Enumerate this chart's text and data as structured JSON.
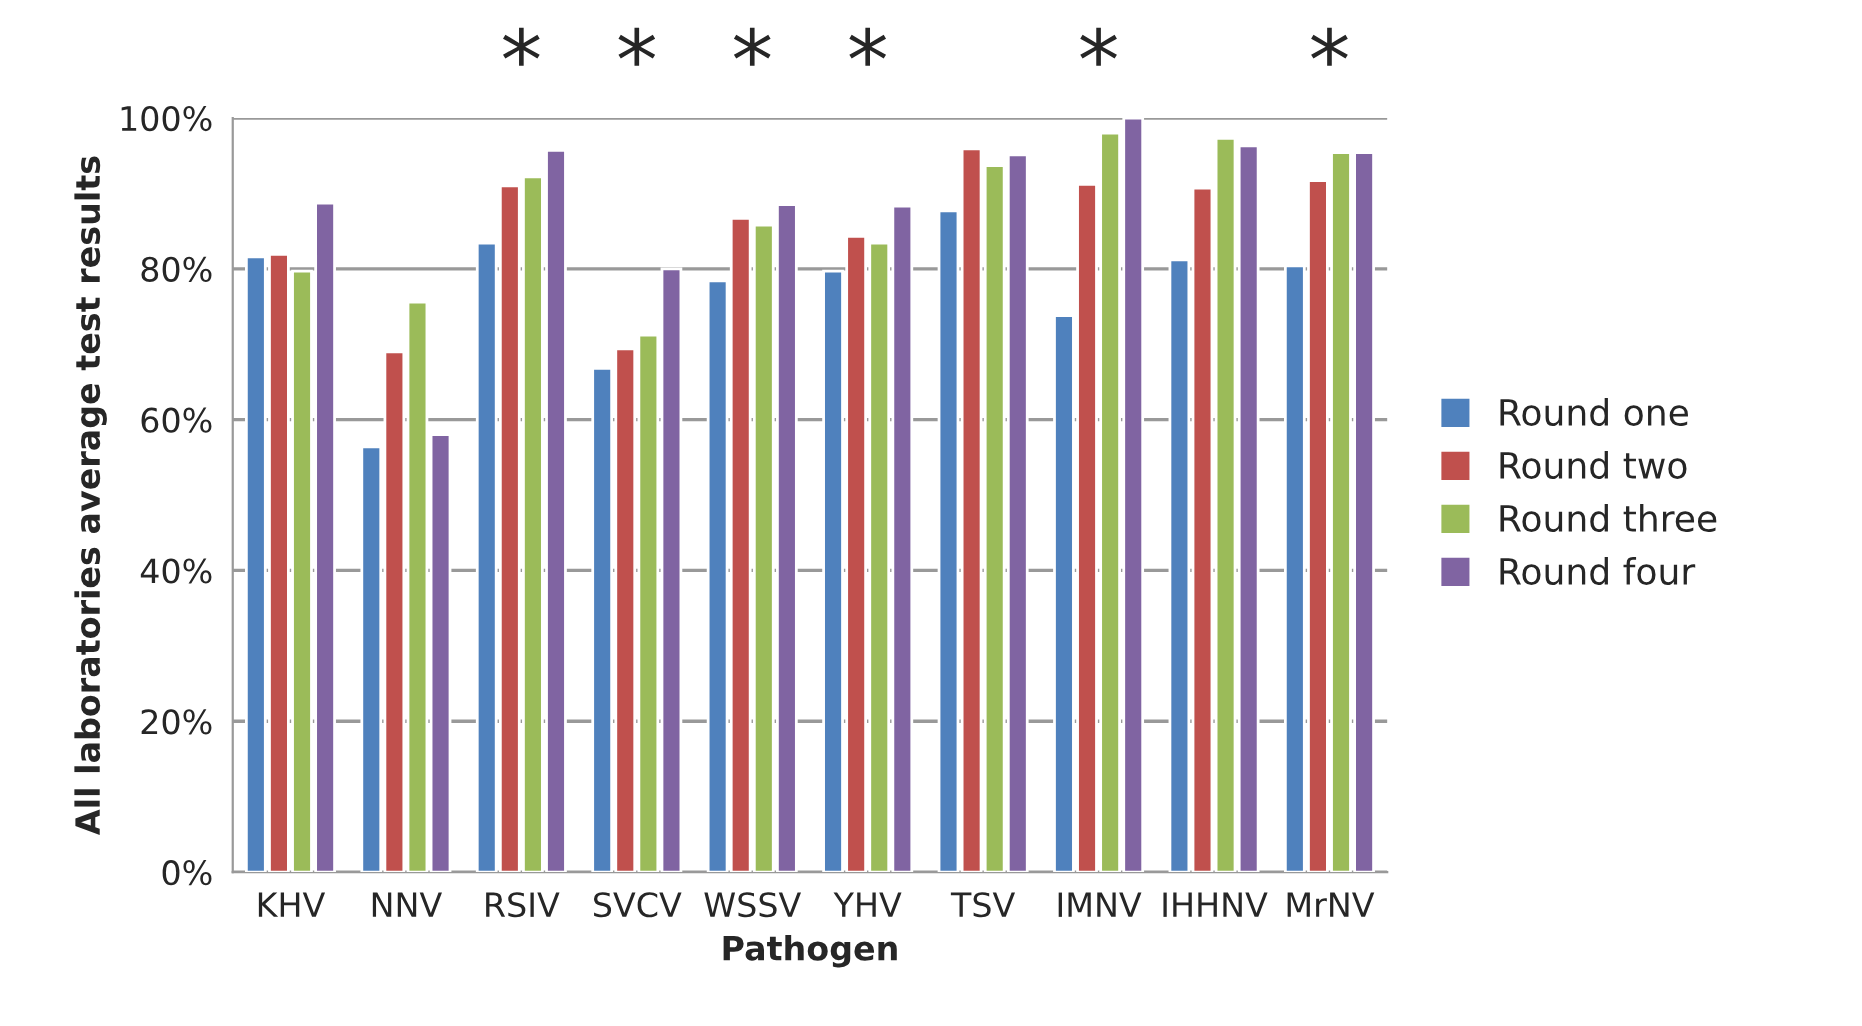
{
  "chart_data": {
    "type": "bar",
    "xlabel": "Pathogen",
    "ylabel": "All laboratories average test results",
    "categories": [
      "KHV",
      "NNV",
      "RSIV",
      "SVCV",
      "WSSV",
      "YHV",
      "TSV",
      "IMNV",
      "IHHNV",
      "MrNV"
    ],
    "series": [
      {
        "name": "Round one",
        "color": "#4f81bd",
        "values": [
          81.6,
          56.4,
          83.4,
          66.8,
          78.4,
          79.7,
          87.7,
          73.8,
          81.2,
          80.4
        ]
      },
      {
        "name": "Round two",
        "color": "#c0504d",
        "values": [
          81.9,
          69.0,
          91.0,
          69.4,
          86.7,
          84.3,
          95.9,
          91.2,
          90.7,
          91.7
        ]
      },
      {
        "name": "Round three",
        "color": "#9bbb59",
        "values": [
          79.7,
          75.6,
          92.2,
          71.2,
          85.8,
          83.4,
          93.7,
          98.0,
          97.3,
          95.4
        ]
      },
      {
        "name": "Round four",
        "color": "#8064a2",
        "values": [
          88.7,
          58.0,
          95.7,
          80.0,
          88.5,
          88.3,
          95.1,
          100.0,
          96.3,
          95.4
        ]
      }
    ],
    "ylim": [
      0,
      100
    ],
    "yticks": [
      {
        "value": 0,
        "label": "0%"
      },
      {
        "value": 20,
        "label": "20%"
      },
      {
        "value": 40,
        "label": "40%"
      },
      {
        "value": 60,
        "label": "60%"
      },
      {
        "value": 80,
        "label": "80%"
      },
      {
        "value": 100,
        "label": "100%"
      }
    ],
    "grid": "y",
    "legend": "right",
    "annotations": [
      "*",
      "*",
      "*",
      "*",
      "*",
      "*"
    ]
  }
}
